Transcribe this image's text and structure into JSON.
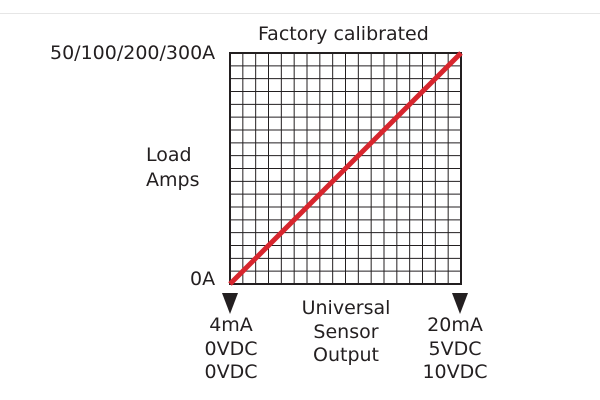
{
  "title": "Factory calibrated",
  "y_axis": {
    "max_label": "50/100/200/300A",
    "min_label": "0A",
    "name_line1": "Load",
    "name_line2": "Amps"
  },
  "x_axis": {
    "name_line1": "Universal",
    "name_line2": "Sensor",
    "name_line3": "Output",
    "min_labels": [
      "4mA",
      "0VDC",
      "0VDC"
    ],
    "max_labels": [
      "20mA",
      "5VDC",
      "10VDC"
    ]
  },
  "grid": {
    "divisions": 18,
    "line_color": "#231f20"
  },
  "response_line": {
    "color": "#d7262e",
    "from": [
      0,
      0
    ],
    "to": [
      1,
      1
    ]
  }
}
